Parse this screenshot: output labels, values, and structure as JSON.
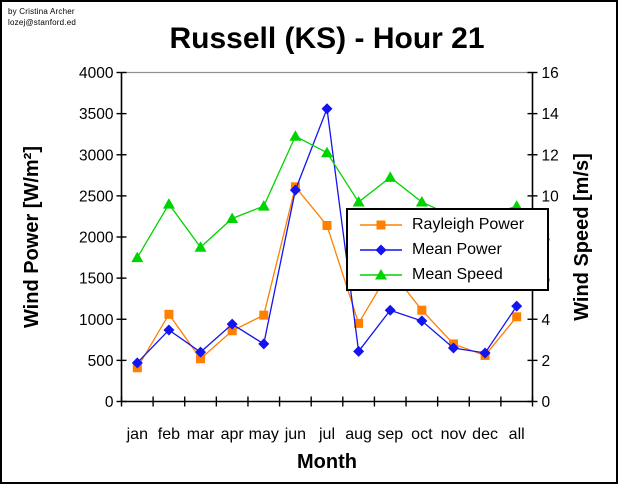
{
  "credit": {
    "line1": "by Cristina Archer",
    "line2": "lozej@stanford.ed"
  },
  "chart_data": {
    "type": "line",
    "title": "Russell (KS) - Hour 21",
    "xlabel": "Month",
    "ylabel_left": "Wind Power [W/m²]",
    "ylabel_right": "Wind Speed [m/s]",
    "categories": [
      "jan",
      "feb",
      "mar",
      "apr",
      "may",
      "jun",
      "jul",
      "aug",
      "sep",
      "oct",
      "nov",
      "dec",
      "all"
    ],
    "left_axis": {
      "min": 0,
      "max": 4000,
      "step": 500
    },
    "right_axis": {
      "min": 0,
      "max": 16,
      "step": 2
    },
    "grid": false,
    "legend_position": "middle-right-overlapping-plot",
    "frame_top_color": "#909090",
    "series": [
      {
        "name": "Rayleigh Power",
        "axis": "left",
        "color": "#FF8000",
        "marker": "square",
        "values": [
          410,
          1060,
          520,
          860,
          1050,
          2610,
          2140,
          950,
          1600,
          1110,
          700,
          560,
          1030
        ]
      },
      {
        "name": "Mean Power",
        "axis": "left",
        "color": "#1414F0",
        "marker": "diamond",
        "values": [
          470,
          870,
          600,
          940,
          700,
          2570,
          3560,
          610,
          1110,
          980,
          650,
          590,
          1160
        ]
      },
      {
        "name": "Mean Speed",
        "axis": "right",
        "color": "#00D400",
        "marker": "triangle",
        "values": [
          7.0,
          9.6,
          7.5,
          8.9,
          9.5,
          12.9,
          12.1,
          9.7,
          10.9,
          9.7,
          9.0,
          9.0,
          9.5
        ]
      }
    ],
    "note": "sep Rayleigh Power and nov/dec Mean Speed points are occluded by the legend box; those values are estimated"
  }
}
